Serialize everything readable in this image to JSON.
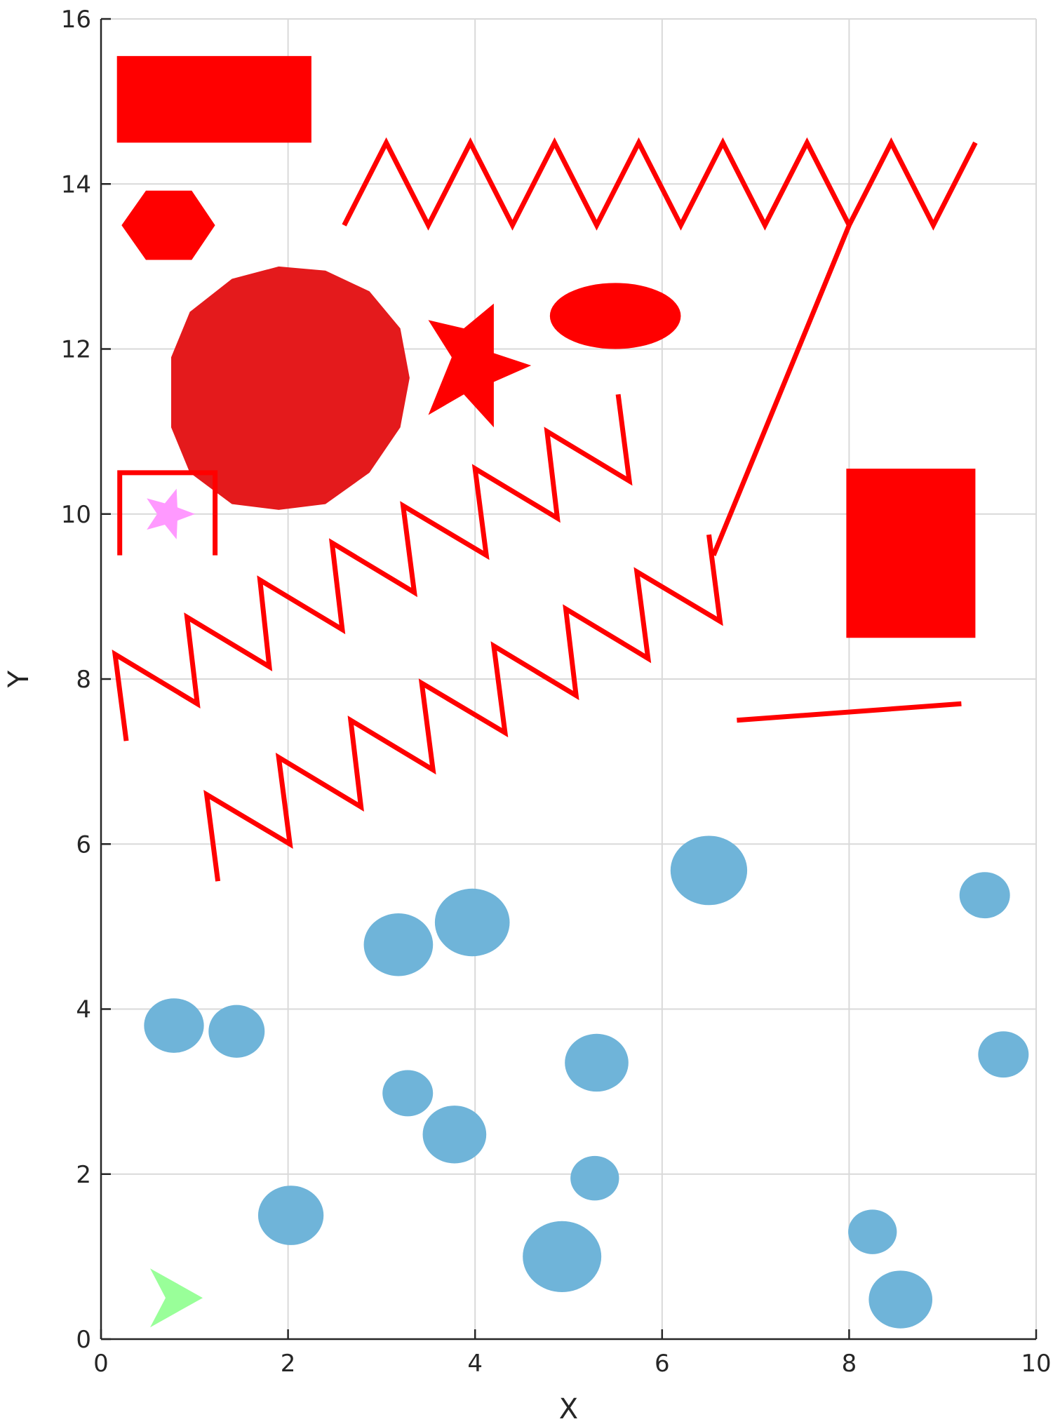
{
  "chart_data": {
    "type": "scatter",
    "xlabel": "X",
    "ylabel": "Y",
    "xlim": [
      0,
      10
    ],
    "ylim": [
      0,
      16
    ],
    "xticks": [
      "0",
      "2",
      "4",
      "6",
      "8",
      "10"
    ],
    "yticks": [
      "0",
      "2",
      "4",
      "6",
      "8",
      "10",
      "12",
      "14",
      "16"
    ],
    "grid": true,
    "legend": "none",
    "colors": {
      "obstacle": "#ff0000",
      "obstacle_dark": "#e41a1c",
      "circle": "#6fb4d9",
      "goal": "#ff99ff",
      "start": "#99ff99"
    },
    "polygons": [
      {
        "kind": "rectangle",
        "points": [
          [
            0.17,
            14.5
          ],
          [
            2.25,
            14.5
          ],
          [
            2.25,
            15.55
          ],
          [
            0.17,
            15.55
          ]
        ],
        "color": "#ff0000"
      },
      {
        "kind": "hexagon",
        "points": [
          [
            0.22,
            13.5
          ],
          [
            0.48,
            13.08
          ],
          [
            0.97,
            13.08
          ],
          [
            1.22,
            13.5
          ],
          [
            0.97,
            13.92
          ],
          [
            0.48,
            13.92
          ]
        ],
        "color": "#ff0000"
      },
      {
        "kind": "polygon",
        "points": [
          [
            1.9,
            13.0
          ],
          [
            2.4,
            12.95
          ],
          [
            2.87,
            12.7
          ],
          [
            3.2,
            12.25
          ],
          [
            3.3,
            11.65
          ],
          [
            3.2,
            11.05
          ],
          [
            2.87,
            10.5
          ],
          [
            2.4,
            10.12
          ],
          [
            1.9,
            10.05
          ],
          [
            1.4,
            10.12
          ],
          [
            0.95,
            10.5
          ],
          [
            0.75,
            11.05
          ],
          [
            0.75,
            11.9
          ],
          [
            0.95,
            12.45
          ],
          [
            1.4,
            12.85
          ]
        ],
        "color": "#e41a1c"
      },
      {
        "kind": "star",
        "points": [
          [
            3.5,
            12.35
          ],
          [
            3.88,
            12.25
          ],
          [
            4.2,
            12.55
          ],
          [
            4.2,
            11.95
          ],
          [
            4.6,
            11.8
          ],
          [
            4.2,
            11.6
          ],
          [
            4.2,
            11.05
          ],
          [
            3.88,
            11.45
          ],
          [
            3.5,
            11.2
          ],
          [
            3.75,
            11.9
          ]
        ],
        "color": "#ff0000"
      },
      {
        "kind": "rectangle",
        "points": [
          [
            7.97,
            8.5
          ],
          [
            9.35,
            8.5
          ],
          [
            9.35,
            10.55
          ],
          [
            7.97,
            10.55
          ]
        ],
        "color": "#ff0000"
      }
    ],
    "ellipses": [
      {
        "kind": "obstacle-ellipse",
        "cx": 5.5,
        "cy": 12.4,
        "rx": 0.7,
        "ry": 0.4,
        "color": "#ff0000"
      }
    ],
    "lines": [
      {
        "kind": "zigzag",
        "points": [
          [
            2.6,
            13.5
          ],
          [
            3.05,
            14.5
          ],
          [
            3.5,
            13.5
          ],
          [
            3.95,
            14.5
          ],
          [
            4.4,
            13.5
          ],
          [
            4.85,
            14.5
          ],
          [
            5.3,
            13.5
          ],
          [
            5.75,
            14.5
          ],
          [
            6.2,
            13.5
          ],
          [
            6.65,
            14.5
          ],
          [
            7.1,
            13.5
          ],
          [
            7.55,
            14.5
          ],
          [
            8.0,
            13.5
          ],
          [
            8.45,
            14.5
          ],
          [
            8.9,
            13.5
          ],
          [
            9.35,
            14.5
          ]
        ],
        "color": "#ff0000"
      },
      {
        "kind": "diagonal",
        "points": [
          [
            6.55,
            9.5
          ],
          [
            8.0,
            13.5
          ]
        ],
        "color": "#ff0000"
      },
      {
        "kind": "bracket",
        "points": [
          [
            0.2,
            9.5
          ],
          [
            0.2,
            10.5
          ],
          [
            1.22,
            10.5
          ],
          [
            1.22,
            9.5
          ]
        ],
        "color": "#ff0000"
      },
      {
        "kind": "zigzag",
        "points": [
          [
            0.27,
            7.25
          ],
          [
            0.15,
            8.3
          ],
          [
            1.03,
            7.7
          ],
          [
            0.92,
            8.75
          ],
          [
            1.8,
            8.15
          ],
          [
            1.7,
            9.2
          ],
          [
            2.58,
            8.6
          ],
          [
            2.47,
            9.65
          ],
          [
            3.35,
            9.05
          ],
          [
            3.23,
            10.1
          ],
          [
            4.12,
            9.5
          ],
          [
            4.0,
            10.55
          ],
          [
            4.88,
            9.95
          ],
          [
            4.77,
            11.0
          ],
          [
            5.65,
            10.4
          ],
          [
            5.53,
            11.45
          ]
        ],
        "color": "#ff0000"
      },
      {
        "kind": "zigzag",
        "points": [
          [
            1.25,
            5.55
          ],
          [
            1.13,
            6.6
          ],
          [
            2.02,
            6.0
          ],
          [
            1.9,
            7.05
          ],
          [
            2.78,
            6.45
          ],
          [
            2.67,
            7.5
          ],
          [
            3.55,
            6.9
          ],
          [
            3.43,
            7.95
          ],
          [
            4.32,
            7.35
          ],
          [
            4.2,
            8.4
          ],
          [
            5.08,
            7.8
          ],
          [
            4.97,
            8.85
          ],
          [
            5.85,
            8.25
          ],
          [
            5.73,
            9.3
          ],
          [
            6.62,
            8.7
          ],
          [
            6.5,
            9.75
          ]
        ],
        "color": "#ff0000"
      },
      {
        "kind": "segment",
        "points": [
          [
            6.8,
            7.5
          ],
          [
            9.2,
            7.7
          ]
        ],
        "color": "#ff0000"
      }
    ],
    "circles": [
      {
        "cx": 0.78,
        "cy": 3.8,
        "rx": 0.32,
        "ry": 0.33
      },
      {
        "cx": 1.45,
        "cy": 3.73,
        "rx": 0.3,
        "ry": 0.32
      },
      {
        "cx": 3.18,
        "cy": 4.78,
        "rx": 0.37,
        "ry": 0.38
      },
      {
        "cx": 3.97,
        "cy": 5.05,
        "rx": 0.4,
        "ry": 0.41
      },
      {
        "cx": 6.5,
        "cy": 5.68,
        "rx": 0.41,
        "ry": 0.42
      },
      {
        "cx": 9.45,
        "cy": 5.38,
        "rx": 0.27,
        "ry": 0.28
      },
      {
        "cx": 3.28,
        "cy": 2.98,
        "rx": 0.27,
        "ry": 0.28
      },
      {
        "cx": 3.78,
        "cy": 2.48,
        "rx": 0.34,
        "ry": 0.35
      },
      {
        "cx": 5.3,
        "cy": 3.35,
        "rx": 0.34,
        "ry": 0.35
      },
      {
        "cx": 9.65,
        "cy": 3.45,
        "rx": 0.27,
        "ry": 0.28
      },
      {
        "cx": 2.03,
        "cy": 1.5,
        "rx": 0.35,
        "ry": 0.36
      },
      {
        "cx": 5.28,
        "cy": 1.95,
        "rx": 0.26,
        "ry": 0.27
      },
      {
        "cx": 4.93,
        "cy": 1.0,
        "rx": 0.42,
        "ry": 0.43
      },
      {
        "cx": 8.25,
        "cy": 1.3,
        "rx": 0.26,
        "ry": 0.27
      },
      {
        "cx": 8.55,
        "cy": 0.48,
        "rx": 0.34,
        "ry": 0.35
      }
    ],
    "markers": [
      {
        "kind": "goal-star",
        "x": 0.72,
        "y": 10.0,
        "color": "#ff99ff"
      },
      {
        "kind": "start-triangle",
        "x": 0.75,
        "y": 0.5,
        "color": "#99ff99"
      }
    ]
  }
}
